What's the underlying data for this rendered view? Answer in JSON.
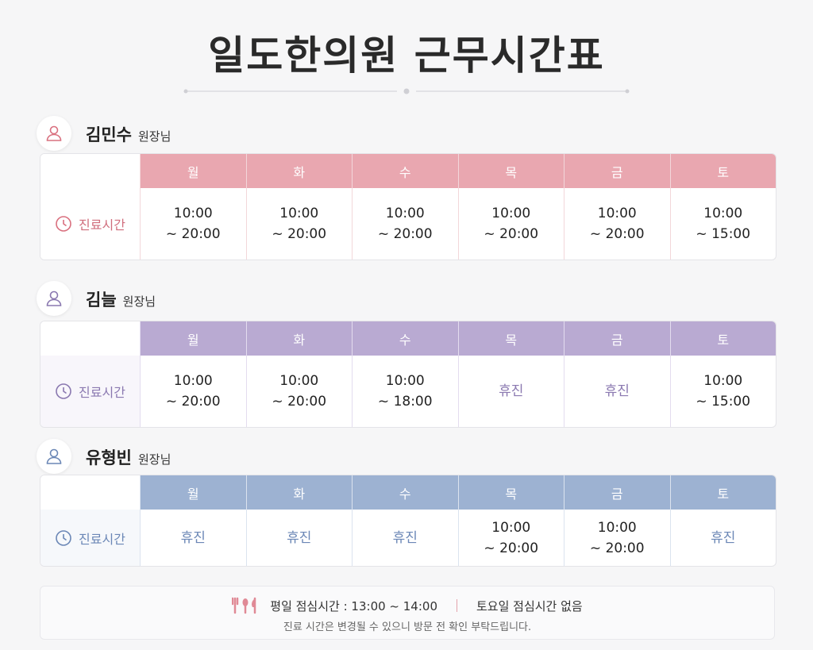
{
  "title": "일도한의원 근무시간표",
  "doctors": [
    {
      "name": "김민수",
      "role": "원장님",
      "row_label": "진료시간",
      "days": [
        "월",
        "화",
        "수",
        "목",
        "금",
        "토"
      ],
      "hours": [
        [
          "10:00",
          "~ 20:00"
        ],
        [
          "10:00",
          "~ 20:00"
        ],
        [
          "10:00",
          "~ 20:00"
        ],
        [
          "10:00",
          "~ 20:00"
        ],
        [
          "10:00",
          "~ 20:00"
        ],
        [
          "10:00",
          "~ 15:00"
        ]
      ]
    },
    {
      "name": "김늘",
      "role": "원장님",
      "row_label": "진료시간",
      "days": [
        "월",
        "화",
        "수",
        "목",
        "금",
        "토"
      ],
      "hours": [
        [
          "10:00",
          "~ 20:00"
        ],
        [
          "10:00",
          "~ 20:00"
        ],
        [
          "10:00",
          "~ 18:00"
        ],
        [
          "휴진"
        ],
        [
          "휴진"
        ],
        [
          "10:00",
          "~ 15:00"
        ]
      ]
    },
    {
      "name": "유형빈",
      "role": "원장님",
      "row_label": "진료시간",
      "days": [
        "월",
        "화",
        "수",
        "목",
        "금",
        "토"
      ],
      "hours": [
        [
          "휴진"
        ],
        [
          "휴진"
        ],
        [
          "휴진"
        ],
        [
          "10:00",
          "~ 20:00"
        ],
        [
          "10:00",
          "~ 20:00"
        ],
        [
          "휴진"
        ]
      ]
    }
  ],
  "footer": {
    "weekday_lunch": "평일 점심시간 : 13:00 ~ 14:00",
    "saturday_lunch": "토요일 점심시간 없음",
    "note": "진료 시간은 변경될 수 있으니 방문 전 확인 부탁드립니다."
  }
}
